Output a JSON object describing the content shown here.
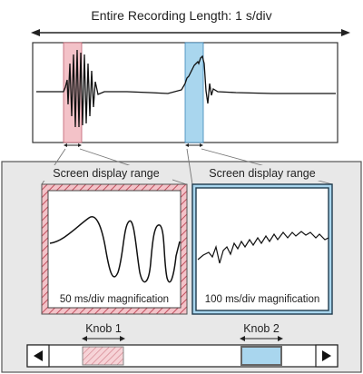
{
  "header": {
    "title": "Entire Recording Length: 1 s/div"
  },
  "magnified_views": [
    {
      "range_label": "Screen display range",
      "magnification_label": "50 ms/div magnification",
      "accent_color": "#f3c2c8",
      "frame_style": "hatched"
    },
    {
      "range_label": "Screen display range",
      "magnification_label": "100 ms/div magnification",
      "accent_color": "#a9d6ee",
      "frame_style": "double-line"
    }
  ],
  "knobs": [
    {
      "label": "Knob 1",
      "color": "#f3c2c8",
      "fill": "hatched"
    },
    {
      "label": "Knob 2",
      "color": "#a9d6ee",
      "fill": "solid"
    }
  ],
  "scrollbar": {
    "left_arrow": "◀",
    "right_arrow": "▶"
  },
  "colors": {
    "panel_background": "#e8e8e8",
    "waveform": "#111111",
    "frame": "#444444"
  }
}
